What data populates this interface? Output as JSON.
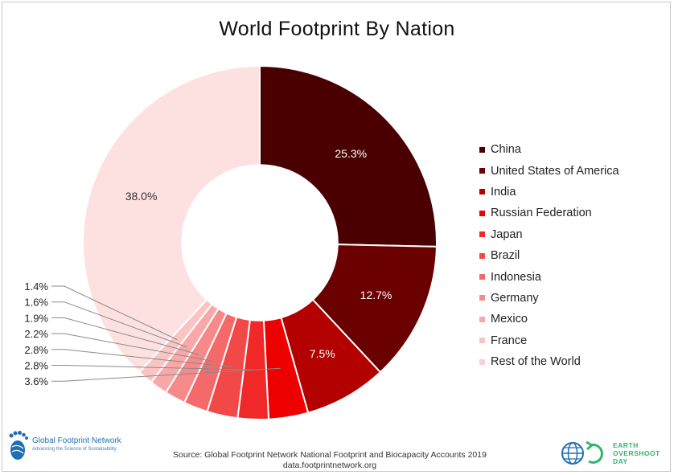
{
  "chart_data": {
    "type": "pie",
    "title": "World Footprint By Nation",
    "start_angle_deg": 0,
    "inner_radius_ratio": 0.44,
    "slices": [
      {
        "name": "China",
        "value": 25.3,
        "label": "25.3%",
        "color": "#4a0000"
      },
      {
        "name": "United States of America",
        "value": 12.7,
        "label": "12.7%",
        "color": "#6b0000"
      },
      {
        "name": "India",
        "value": 7.5,
        "label": "7.5%",
        "color": "#b30000"
      },
      {
        "name": "Russian Federation",
        "value": 3.6,
        "label": "3.6%",
        "color": "#ee0000"
      },
      {
        "name": "Japan",
        "value": 2.8,
        "label": "2.8%",
        "color": "#f02828"
      },
      {
        "name": "Brazil",
        "value": 2.8,
        "label": "2.8%",
        "color": "#f24848"
      },
      {
        "name": "Indonesia",
        "value": 2.2,
        "label": "2.2%",
        "color": "#f46a6a"
      },
      {
        "name": "Germany",
        "value": 1.9,
        "label": "1.9%",
        "color": "#f68a8a"
      },
      {
        "name": "Mexico",
        "value": 1.6,
        "label": "1.6%",
        "color": "#f8a8a8"
      },
      {
        "name": "France",
        "value": 1.4,
        "label": "1.4%",
        "color": "#fac4c4"
      },
      {
        "name": "Rest of the World",
        "value": 38.0,
        "label": "38.0%",
        "color": "#fde0e0"
      }
    ],
    "legend_position": "right"
  },
  "footer": {
    "source_line1": "Source: Global Footprint Network National Footprint and Biocapacity Accounts 2019",
    "source_line2": "data.footprintnetwork.org"
  },
  "logos": {
    "left_name": "Global Footprint Network",
    "left_tagline": "Advancing the Science of Sustainability",
    "right_line1": "EARTH",
    "right_line2": "OVERSHOOT",
    "right_line3": "DAY"
  }
}
